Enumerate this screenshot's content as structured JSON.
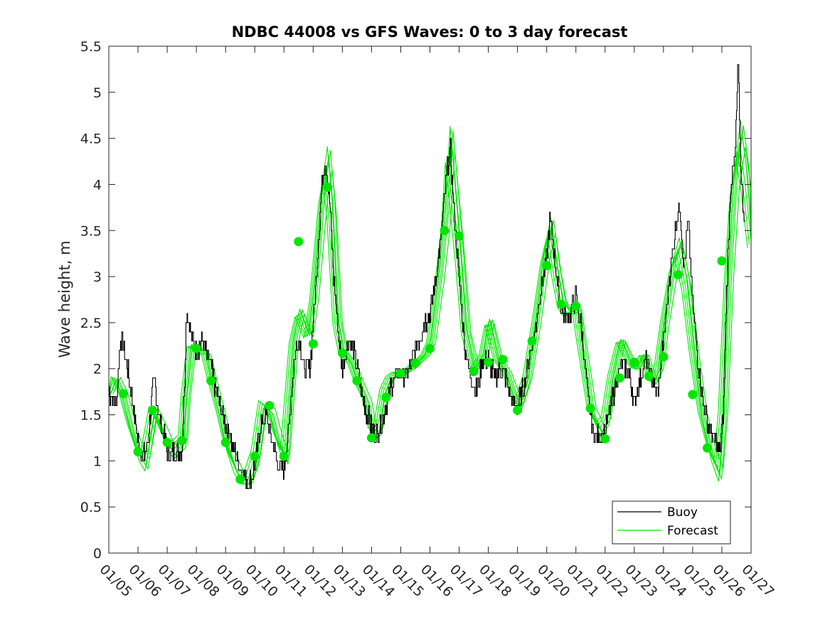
{
  "chart_data": {
    "type": "line",
    "title": "NDBC 44008 vs GFS Waves: 0 to 3 day forecast",
    "xlabel": "",
    "ylabel": "Wave height, m",
    "xlim": [
      0,
      22
    ],
    "ylim": [
      0,
      5.5
    ],
    "yticks": [
      0,
      0.5,
      1,
      1.5,
      2,
      2.5,
      3,
      3.5,
      4,
      4.5,
      5,
      5.5
    ],
    "ytick_labels": [
      "0",
      "0.5",
      "1",
      "1.5",
      "2",
      "2.5",
      "3",
      "3.5",
      "4",
      "4.5",
      "5",
      "5.5"
    ],
    "xtick_labels": [
      "01/05",
      "01/06",
      "01/07",
      "01/08",
      "01/09",
      "01/10",
      "01/11",
      "01/12",
      "01/13",
      "01/14",
      "01/15",
      "01/16",
      "01/17",
      "01/18",
      "01/19",
      "01/20",
      "01/21",
      "01/22",
      "01/23",
      "01/24",
      "01/25",
      "01/26",
      "01/27"
    ],
    "colors": {
      "buoy": "#000000",
      "forecast": "#00e600",
      "marker": "#00e600"
    },
    "legend": {
      "position": "bottom-right",
      "entries": [
        "Buoy",
        "Forecast"
      ]
    },
    "buoy_keypoints": [
      [
        0,
        1.75
      ],
      [
        0.25,
        1.6
      ],
      [
        0.4,
        2.35
      ],
      [
        0.6,
        2.1
      ],
      [
        0.8,
        1.65
      ],
      [
        1.0,
        1.2
      ],
      [
        1.15,
        1.05
      ],
      [
        1.3,
        1.1
      ],
      [
        1.5,
        1.75
      ],
      [
        1.55,
        1.9
      ],
      [
        1.7,
        1.5
      ],
      [
        1.9,
        1.25
      ],
      [
        2.05,
        1.05
      ],
      [
        2.3,
        1.1
      ],
      [
        2.5,
        1.15
      ],
      [
        2.6,
        1.9
      ],
      [
        2.65,
        2.65
      ],
      [
        2.8,
        2.4
      ],
      [
        3.0,
        2.2
      ],
      [
        3.2,
        2.3
      ],
      [
        3.5,
        2.0
      ],
      [
        3.8,
        1.6
      ],
      [
        4.0,
        1.4
      ],
      [
        4.2,
        1.2
      ],
      [
        4.4,
        1.0
      ],
      [
        4.6,
        0.85
      ],
      [
        4.8,
        0.75
      ],
      [
        5.0,
        0.95
      ],
      [
        5.2,
        1.4
      ],
      [
        5.4,
        1.5
      ],
      [
        5.6,
        1.2
      ],
      [
        5.8,
        0.95
      ],
      [
        6.0,
        0.9
      ],
      [
        6.15,
        1.3
      ],
      [
        6.35,
        2.1
      ],
      [
        6.5,
        2.35
      ],
      [
        6.7,
        1.95
      ],
      [
        6.9,
        2.05
      ],
      [
        7.1,
        3.0
      ],
      [
        7.3,
        4.0
      ],
      [
        7.4,
        4.25
      ],
      [
        7.55,
        3.9
      ],
      [
        7.7,
        3.0
      ],
      [
        7.85,
        2.4
      ],
      [
        8.0,
        2.0
      ],
      [
        8.2,
        2.3
      ],
      [
        8.4,
        2.2
      ],
      [
        8.6,
        1.85
      ],
      [
        8.8,
        1.55
      ],
      [
        9.0,
        1.35
      ],
      [
        9.2,
        1.3
      ],
      [
        9.4,
        1.5
      ],
      [
        9.6,
        1.75
      ],
      [
        9.8,
        1.9
      ],
      [
        10.0,
        1.95
      ],
      [
        10.2,
        1.9
      ],
      [
        10.4,
        2.1
      ],
      [
        10.6,
        2.3
      ],
      [
        10.8,
        2.5
      ],
      [
        11.0,
        2.6
      ],
      [
        11.2,
        3.0
      ],
      [
        11.4,
        3.5
      ],
      [
        11.6,
        4.2
      ],
      [
        11.7,
        4.35
      ],
      [
        11.8,
        3.8
      ],
      [
        12.0,
        3.0
      ],
      [
        12.2,
        2.2
      ],
      [
        12.4,
        1.9
      ],
      [
        12.6,
        1.75
      ],
      [
        12.8,
        2.1
      ],
      [
        13.0,
        2.1
      ],
      [
        13.2,
        1.9
      ],
      [
        13.4,
        2.0
      ],
      [
        13.6,
        1.9
      ],
      [
        13.8,
        1.65
      ],
      [
        14.0,
        1.6
      ],
      [
        14.2,
        1.8
      ],
      [
        14.4,
        2.1
      ],
      [
        14.6,
        2.4
      ],
      [
        14.8,
        2.9
      ],
      [
        15.0,
        3.2
      ],
      [
        15.1,
        3.6
      ],
      [
        15.25,
        3.3
      ],
      [
        15.4,
        2.8
      ],
      [
        15.6,
        2.55
      ],
      [
        15.8,
        2.6
      ],
      [
        16.0,
        2.8
      ],
      [
        16.2,
        2.4
      ],
      [
        16.4,
        1.7
      ],
      [
        16.6,
        1.3
      ],
      [
        16.8,
        1.25
      ],
      [
        17.0,
        1.3
      ],
      [
        17.2,
        1.6
      ],
      [
        17.4,
        1.9
      ],
      [
        17.6,
        2.05
      ],
      [
        17.8,
        1.95
      ],
      [
        18.0,
        1.65
      ],
      [
        18.2,
        1.9
      ],
      [
        18.4,
        2.1
      ],
      [
        18.6,
        1.9
      ],
      [
        18.8,
        1.7
      ],
      [
        19.0,
        2.3
      ],
      [
        19.2,
        3.0
      ],
      [
        19.4,
        3.5
      ],
      [
        19.55,
        3.8
      ],
      [
        19.7,
        3.1
      ],
      [
        19.85,
        3.6
      ],
      [
        20.0,
        2.7
      ],
      [
        20.2,
        2.0
      ],
      [
        20.4,
        1.55
      ],
      [
        20.6,
        1.3
      ],
      [
        20.8,
        1.2
      ],
      [
        20.95,
        1.1
      ],
      [
        21.05,
        1.5
      ],
      [
        21.15,
        2.8
      ],
      [
        21.3,
        4.0
      ],
      [
        21.45,
        4.3
      ],
      [
        21.55,
        5.35
      ],
      [
        21.65,
        4.1
      ],
      [
        21.8,
        3.5
      ]
    ],
    "forecast_base": [
      [
        0,
        1.75
      ],
      [
        0.2,
        1.9
      ],
      [
        0.45,
        1.73
      ],
      [
        0.75,
        1.35
      ],
      [
        1.0,
        1.1
      ],
      [
        1.2,
        1.0
      ],
      [
        1.5,
        1.55
      ],
      [
        1.8,
        1.35
      ],
      [
        2.0,
        1.2
      ],
      [
        2.2,
        1.12
      ],
      [
        2.5,
        1.22
      ],
      [
        2.6,
        1.7
      ],
      [
        2.8,
        2.25
      ],
      [
        3.0,
        2.22
      ],
      [
        3.3,
        2.15
      ],
      [
        3.5,
        1.87
      ],
      [
        3.8,
        1.5
      ],
      [
        4.0,
        1.2
      ],
      [
        4.25,
        0.98
      ],
      [
        4.5,
        0.8
      ],
      [
        4.75,
        0.78
      ],
      [
        5.0,
        1.05
      ],
      [
        5.25,
        1.62
      ],
      [
        5.5,
        1.55
      ],
      [
        5.75,
        1.25
      ],
      [
        6.0,
        1.05
      ],
      [
        6.3,
        2.3
      ],
      [
        6.5,
        2.6
      ],
      [
        6.8,
        2.35
      ],
      [
        7.0,
        2.8
      ],
      [
        7.3,
        3.9
      ],
      [
        7.45,
        4.2
      ],
      [
        7.6,
        3.7
      ],
      [
        7.8,
        2.5
      ],
      [
        8.0,
        2.17
      ],
      [
        8.3,
        2.05
      ],
      [
        8.5,
        1.87
      ],
      [
        8.8,
        1.65
      ],
      [
        9.0,
        1.3
      ],
      [
        9.2,
        1.35
      ],
      [
        9.4,
        1.75
      ],
      [
        9.6,
        1.9
      ],
      [
        9.8,
        1.95
      ],
      [
        10.0,
        1.95
      ],
      [
        10.3,
        2.0
      ],
      [
        10.5,
        2.06
      ],
      [
        10.8,
        2.15
      ],
      [
        11.0,
        2.3
      ],
      [
        11.3,
        3.0
      ],
      [
        11.5,
        3.6
      ],
      [
        11.65,
        4.4
      ],
      [
        11.8,
        3.9
      ],
      [
        12.0,
        3.2
      ],
      [
        12.2,
        2.4
      ],
      [
        12.5,
        2.0
      ],
      [
        12.8,
        2.15
      ],
      [
        13.0,
        2.5
      ],
      [
        13.3,
        2.1
      ],
      [
        13.6,
        1.95
      ],
      [
        14.0,
        1.6
      ],
      [
        14.3,
        1.9
      ],
      [
        14.6,
        2.5
      ],
      [
        14.9,
        3.2
      ],
      [
        15.1,
        3.5
      ],
      [
        15.3,
        3.05
      ],
      [
        15.5,
        2.7
      ],
      [
        15.7,
        2.6
      ],
      [
        16.0,
        2.65
      ],
      [
        16.2,
        2.2
      ],
      [
        16.5,
        1.55
      ],
      [
        16.8,
        1.35
      ],
      [
        17.0,
        1.45
      ],
      [
        17.2,
        1.9
      ],
      [
        17.5,
        2.3
      ],
      [
        17.8,
        2.1
      ],
      [
        18.0,
        2.0
      ],
      [
        18.3,
        2.15
      ],
      [
        18.6,
        1.85
      ],
      [
        18.8,
        2.0
      ],
      [
        19.0,
        2.5
      ],
      [
        19.3,
        3.1
      ],
      [
        19.5,
        3.3
      ],
      [
        19.75,
        2.9
      ],
      [
        20.0,
        2.2
      ],
      [
        20.3,
        1.5
      ],
      [
        20.6,
        1.1
      ],
      [
        20.85,
        0.9
      ],
      [
        21.0,
        1.5
      ],
      [
        21.2,
        3.0
      ],
      [
        21.4,
        4.0
      ],
      [
        21.6,
        4.45
      ],
      [
        21.8,
        4.0
      ],
      [
        22.0,
        3.4
      ]
    ],
    "forecast_offsets": [
      {
        "shift": 0,
        "scale": 1.0
      },
      {
        "shift": 0.08,
        "scale": 1.05
      },
      {
        "shift": -0.06,
        "scale": 0.96
      },
      {
        "shift": 0.14,
        "scale": 1.08
      },
      {
        "shift": -0.12,
        "scale": 0.93
      },
      {
        "shift": 0.04,
        "scale": 1.1
      },
      {
        "shift": 0.2,
        "scale": 0.98
      }
    ],
    "marker_points": [
      [
        0.5,
        1.73
      ],
      [
        1.0,
        1.1
      ],
      [
        1.5,
        1.55
      ],
      [
        2.0,
        1.2
      ],
      [
        2.5,
        1.22
      ],
      [
        3.0,
        2.22
      ],
      [
        3.5,
        1.87
      ],
      [
        4.0,
        1.2
      ],
      [
        4.5,
        0.8
      ],
      [
        5.0,
        1.05
      ],
      [
        5.5,
        1.6
      ],
      [
        6.0,
        1.05
      ],
      [
        6.5,
        3.38
      ],
      [
        7.0,
        2.27
      ],
      [
        7.5,
        3.97
      ],
      [
        8.0,
        2.17
      ],
      [
        8.5,
        1.87
      ],
      [
        9.0,
        1.25
      ],
      [
        9.5,
        1.69
      ],
      [
        10.0,
        1.95
      ],
      [
        10.5,
        2.06
      ],
      [
        11.0,
        2.22
      ],
      [
        11.5,
        3.5
      ],
      [
        12.0,
        3.44
      ],
      [
        12.5,
        1.97
      ],
      [
        13.0,
        2.07
      ],
      [
        13.5,
        2.1
      ],
      [
        14.0,
        1.55
      ],
      [
        14.5,
        2.3
      ],
      [
        15.0,
        3.12
      ],
      [
        15.5,
        2.7
      ],
      [
        16.0,
        2.68
      ],
      [
        16.5,
        1.57
      ],
      [
        17.0,
        1.24
      ],
      [
        17.5,
        1.9
      ],
      [
        18.0,
        2.07
      ],
      [
        18.5,
        1.92
      ],
      [
        19.0,
        2.13
      ],
      [
        19.5,
        3.02
      ],
      [
        20.0,
        1.72
      ],
      [
        20.5,
        1.14
      ],
      [
        21.0,
        3.17
      ]
    ]
  }
}
